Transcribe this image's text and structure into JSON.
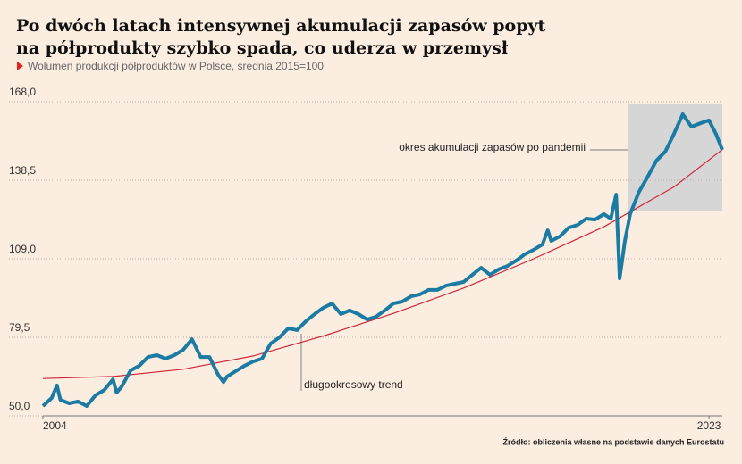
{
  "chart_data": {
    "type": "line",
    "title": [
      "Po dwóch latach intensywnej akumulacji zapasów popyt",
      "na półprodukty szybko spada, co uderza w przemysł"
    ],
    "subtitle": "Wolumen produkcji półproduktów w Polsce, średnia 2015=100",
    "source": "Źródło: obliczenia własne na podstawie danych Eurostatu",
    "annotations": [
      "okres akumulacji zapasów po pandemii",
      "długookresowy trend"
    ],
    "highlight": {
      "x": [
        2020.68,
        2023.38
      ],
      "y": [
        126.8,
        167.3
      ],
      "color": "#d6d6d6"
    },
    "xlim": [
      2004,
      2023.38
    ],
    "xticks": [
      2004,
      2023
    ],
    "ylim": [
      50,
      168
    ],
    "yticks": [
      {
        "value": 168,
        "label": "168,0"
      },
      {
        "value": 138.5,
        "label": "138,5"
      },
      {
        "value": 109,
        "label": "109,0"
      },
      {
        "value": 79.5,
        "label": "79,5"
      },
      {
        "value": 50,
        "label": "50,0"
      }
    ],
    "grid": true,
    "series": [
      {
        "color": "#1b7ba3",
        "x": [
          2004.0,
          2004.25,
          2004.4,
          2004.5,
          2004.75,
          2005.0,
          2005.25,
          2005.5,
          2005.75,
          2006.0,
          2006.1,
          2006.25,
          2006.5,
          2006.75,
          2007.0,
          2007.25,
          2007.5,
          2007.75,
          2008.0,
          2008.25,
          2008.5,
          2008.75,
          2009.0,
          2009.15,
          2009.25,
          2009.5,
          2009.75,
          2010.0,
          2010.25,
          2010.5,
          2010.75,
          2011.0,
          2011.25,
          2011.5,
          2011.75,
          2012.0,
          2012.25,
          2012.5,
          2012.75,
          2013.0,
          2013.25,
          2013.5,
          2013.75,
          2014.0,
          2014.25,
          2014.5,
          2014.75,
          2015.0,
          2015.25,
          2015.5,
          2015.75,
          2016.0,
          2016.25,
          2016.5,
          2016.75,
          2017.0,
          2017.25,
          2017.5,
          2017.75,
          2018.0,
          2018.25,
          2018.4,
          2018.5,
          2018.75,
          2019.0,
          2019.25,
          2019.5,
          2019.75,
          2020.0,
          2020.2,
          2020.35,
          2020.45,
          2020.6,
          2020.75,
          2021.0,
          2021.25,
          2021.5,
          2021.75,
          2022.0,
          2022.25,
          2022.5,
          2022.75,
          2023.0,
          2023.2,
          2023.38
        ],
        "values": [
          53.7,
          56.7,
          61.4,
          56,
          54.7,
          55.4,
          53.7,
          57.7,
          59.7,
          63.7,
          58.7,
          61,
          67,
          68.8,
          72.1,
          72.8,
          71.5,
          72.8,
          74.8,
          78.8,
          72.1,
          72.1,
          65.4,
          62.7,
          64.7,
          66.8,
          68.8,
          70.4,
          71.5,
          77.2,
          79.5,
          82.9,
          82.2,
          85.5,
          88.2,
          90.6,
          92.2,
          88.2,
          89.6,
          88.2,
          86.2,
          87.2,
          89.6,
          92.2,
          92.9,
          94.9,
          95.6,
          97.3,
          97.3,
          98.9,
          99.6,
          100.3,
          103,
          105.6,
          103,
          105,
          106.3,
          108.3,
          110.7,
          112.4,
          114.4,
          119.7,
          115.7,
          117.4,
          120.7,
          121.7,
          124.1,
          123.7,
          125.8,
          124.1,
          133.1,
          101.6,
          115.7,
          125.8,
          134.1,
          139.8,
          145.9,
          149.2,
          155.9,
          163.3,
          158.6,
          159.9,
          161,
          155.9,
          149.9
        ]
      },
      {
        "color": "#d0263a",
        "x": [
          2004,
          2006,
          2008,
          2010,
          2012,
          2014,
          2016,
          2018,
          2020,
          2022,
          2023.38
        ],
        "values": [
          64,
          64.8,
          67.5,
          72.5,
          80,
          88.5,
          98,
          109,
          121,
          136,
          150
        ]
      }
    ]
  }
}
